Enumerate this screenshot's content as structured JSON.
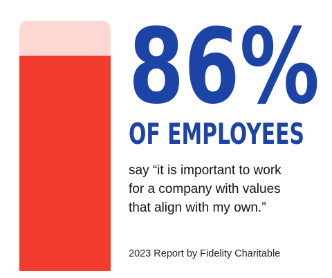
{
  "chart_data": {
    "type": "progress",
    "values": [
      86
    ],
    "value_labels": [
      "86%"
    ],
    "ylim": [
      0,
      100
    ],
    "color": "#f33a2e",
    "track_color": "#fdd8d3",
    "text_color": "#1c43a6",
    "subtitle": "OF EMPLOYEES",
    "annotations": [
      "say “it is important to work",
      "for a company with values",
      "that align with my own.”"
    ],
    "source": "2023 Report by Fidelity Charitable"
  }
}
